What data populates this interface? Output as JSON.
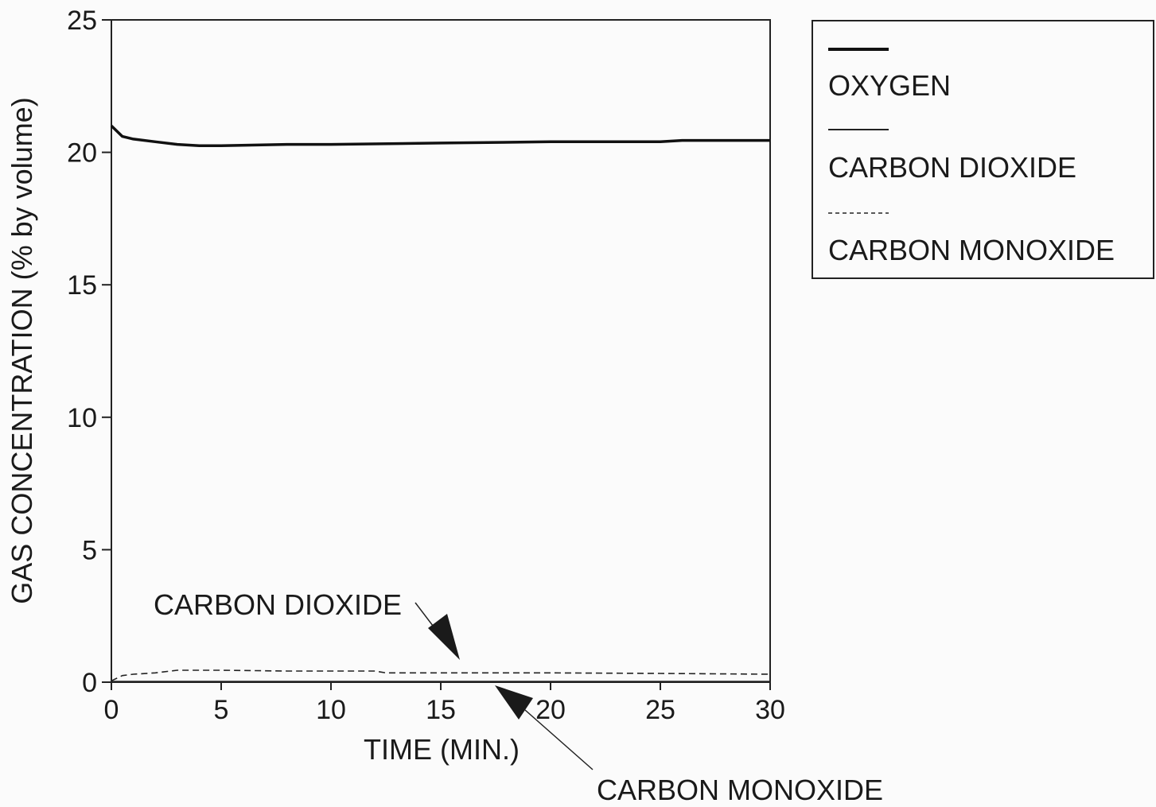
{
  "chart_data": {
    "type": "line",
    "title": "",
    "xlabel": "TIME (MIN.)",
    "ylabel": "GAS CONCENTRATION (% by volume)",
    "xlim": [
      0,
      30
    ],
    "ylim": [
      0,
      25
    ],
    "xticks": [
      0,
      5,
      10,
      15,
      20,
      25,
      30
    ],
    "yticks": [
      0,
      5,
      10,
      15,
      20,
      25
    ],
    "grid": false,
    "legend_position": "right",
    "series": [
      {
        "name": "OXYGEN",
        "style": "thick-solid",
        "color": "#111111",
        "x": [
          0,
          0.5,
          1,
          2,
          3,
          4,
          5,
          8,
          10,
          15,
          20,
          25,
          26,
          30
        ],
        "y": [
          21.0,
          20.6,
          20.5,
          20.4,
          20.3,
          20.25,
          20.25,
          20.3,
          20.3,
          20.35,
          20.4,
          20.4,
          20.45,
          20.45
        ]
      },
      {
        "name": "CARBON DIOXIDE",
        "style": "thin-solid",
        "color": "#222222",
        "x": [
          0,
          5,
          10,
          15,
          20,
          25,
          30
        ],
        "y": [
          0.02,
          0.02,
          0.02,
          0.02,
          0.02,
          0.02,
          0.02
        ]
      },
      {
        "name": "CARBON MONOXIDE",
        "style": "dashed",
        "color": "#222222",
        "x": [
          0,
          0.5,
          1,
          2,
          3,
          5,
          8,
          12,
          12.5,
          15,
          20,
          25,
          30
        ],
        "y": [
          0.05,
          0.25,
          0.3,
          0.35,
          0.45,
          0.45,
          0.42,
          0.42,
          0.35,
          0.35,
          0.35,
          0.33,
          0.3
        ]
      }
    ],
    "annotations": [
      {
        "text": "CARBON DIOXIDE",
        "points_to_x": 16,
        "points_to_y": 0.5
      },
      {
        "text": "CARBON MONOXIDE",
        "points_to_x": 17.5,
        "points_to_y": 0.05
      }
    ]
  }
}
